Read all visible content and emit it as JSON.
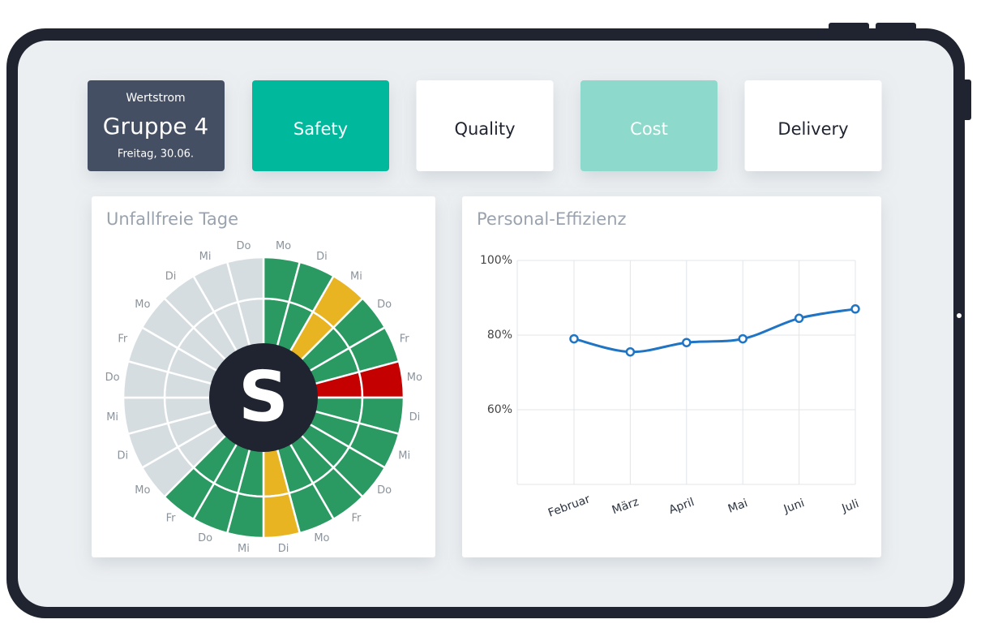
{
  "header": {
    "label": "Wertstrom",
    "title": "Gruppe 4",
    "date": "Freitag, 30.06."
  },
  "tabs": [
    {
      "label": "Safety",
      "color": "#00b89c",
      "text_color": "#ffffff"
    },
    {
      "label": "Quality",
      "color": "#ffffff",
      "text_color": "#1f2430"
    },
    {
      "label": "Cost",
      "color": "#8dd9cb",
      "text_color": "#ffffff"
    },
    {
      "label": "Delivery",
      "color": "#ffffff",
      "text_color": "#1f2430"
    }
  ],
  "safety_wheel": {
    "title": "Unfallfreie Tage",
    "center_letter": "S",
    "days": [
      "Mo",
      "Di",
      "Mi",
      "Do",
      "Fr",
      "Mo",
      "Di",
      "Mi",
      "Do",
      "Fr",
      "Mo",
      "Di",
      "Mi",
      "Do",
      "Fr",
      "Mo",
      "Di",
      "Mi",
      "Do",
      "Fr",
      "Mo",
      "Di",
      "Mi",
      "Do"
    ],
    "colors": [
      "#2a9a62",
      "#2a9a62",
      "#e8b422",
      "#2a9a62",
      "#2a9a62",
      "#c40000",
      "#2a9a62",
      "#2a9a62",
      "#2a9a62",
      "#2a9a62",
      "#2a9a62",
      "#e8b422",
      "#2a9a62",
      "#2a9a62",
      "#2a9a62",
      "#d5dde1",
      "#d5dde1",
      "#d5dde1",
      "#d5dde1",
      "#d5dde1",
      "#d5dde1",
      "#d5dde1",
      "#d5dde1",
      "#d5dde1"
    ]
  },
  "chart_data": {
    "type": "line",
    "title": "Personal-Effizienz",
    "categories": [
      "Februar",
      "März",
      "April",
      "Mai",
      "Juni",
      "Juli"
    ],
    "values": [
      79,
      75.5,
      78,
      79,
      84.5,
      87
    ],
    "color": "#1f74c4",
    "ylim": [
      40,
      100
    ],
    "yticks": [
      {
        "value": 60,
        "label": "60%"
      },
      {
        "value": 80,
        "label": "80%"
      },
      {
        "value": 100,
        "label": "100%"
      }
    ],
    "grid": true
  }
}
